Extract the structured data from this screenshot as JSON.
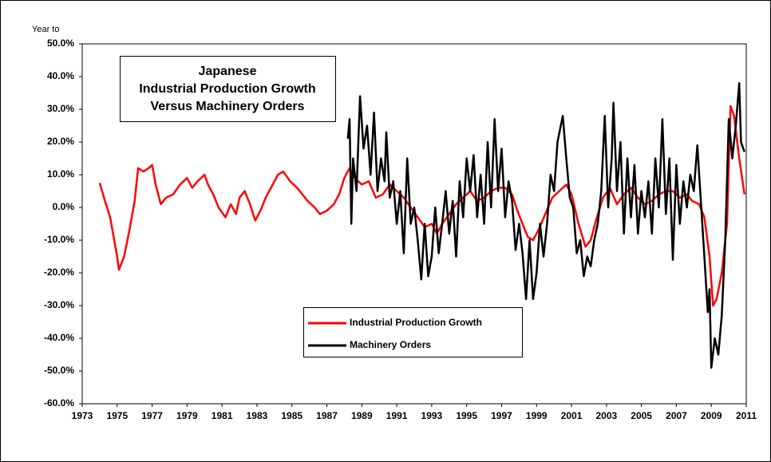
{
  "chart_data": {
    "type": "line",
    "title": [
      "Japanese",
      "Industrial Production Growth",
      "Versus Machinery Orders"
    ],
    "y_label": "Year to",
    "ylim": [
      -60,
      50
    ],
    "yticks": [
      {
        "value": -60,
        "label": "-60.0%"
      },
      {
        "value": -50,
        "label": "-50.0%"
      },
      {
        "value": -40,
        "label": "-40.0%"
      },
      {
        "value": -30,
        "label": "-30.0%"
      },
      {
        "value": -20,
        "label": "-20.0%"
      },
      {
        "value": -10,
        "label": "-10.0%"
      },
      {
        "value": 0,
        "label": "0.0%"
      },
      {
        "value": 10,
        "label": "10.0%"
      },
      {
        "value": 20,
        "label": "20.0%"
      },
      {
        "value": 30,
        "label": "30.0%"
      },
      {
        "value": 40,
        "label": "40.0%"
      },
      {
        "value": 50,
        "label": "50.0%"
      }
    ],
    "xlim": [
      1973,
      2011
    ],
    "xticks": [
      1973,
      1975,
      1977,
      1979,
      1981,
      1983,
      1985,
      1987,
      1989,
      1991,
      1993,
      1995,
      1997,
      1999,
      2001,
      2003,
      2005,
      2007,
      2009,
      2011
    ],
    "series": [
      {
        "name": "Industrial Production Growth",
        "color": "#ff0000",
        "x": [
          1974.0,
          1974.3,
          1974.6,
          1975.0,
          1975.1,
          1975.4,
          1975.7,
          1976.0,
          1976.2,
          1976.5,
          1976.8,
          1977.0,
          1977.2,
          1977.5,
          1977.8,
          1978.2,
          1978.6,
          1979.0,
          1979.3,
          1979.6,
          1980.0,
          1980.2,
          1980.5,
          1980.8,
          1981.2,
          1981.5,
          1981.8,
          1982.0,
          1982.3,
          1982.6,
          1982.9,
          1983.2,
          1983.5,
          1983.8,
          1984.2,
          1984.5,
          1984.9,
          1985.3,
          1985.6,
          1985.9,
          1986.3,
          1986.6,
          1987.0,
          1987.4,
          1987.7,
          1988.0,
          1988.3,
          1988.6,
          1989.0,
          1989.4,
          1989.8,
          1990.2,
          1990.6,
          1991.0,
          1991.4,
          1991.8,
          1992.2,
          1992.6,
          1993.0,
          1993.3,
          1993.6,
          1994.0,
          1994.4,
          1994.8,
          1995.2,
          1995.6,
          1996.0,
          1996.4,
          1996.8,
          1997.2,
          1997.6,
          1997.9,
          1998.2,
          1998.5,
          1998.8,
          1999.1,
          1999.5,
          1999.9,
          2000.3,
          2000.7,
          2001.0,
          2001.4,
          2001.8,
          2002.1,
          2002.4,
          2002.8,
          2003.2,
          2003.6,
          2004.0,
          2004.4,
          2004.8,
          2005.2,
          2005.6,
          2006.0,
          2006.4,
          2006.8,
          2007.2,
          2007.6,
          2007.9,
          2008.3,
          2008.6,
          2008.9,
          2009.1,
          2009.3,
          2009.6,
          2009.9,
          2010.1,
          2010.3,
          2010.6,
          2010.9
        ],
        "values": [
          7.5,
          2,
          -3,
          -15,
          -19,
          -15,
          -7,
          2,
          12,
          11,
          12,
          13,
          7,
          1,
          3,
          4,
          7,
          9,
          6,
          8,
          10,
          7,
          4,
          0,
          -3,
          1,
          -2,
          3,
          5,
          1,
          -4,
          -1,
          3,
          6,
          10,
          11,
          8,
          6,
          4,
          2,
          0,
          -2,
          -1,
          1,
          4,
          9,
          12,
          9,
          7,
          8,
          3,
          4,
          7,
          5,
          3,
          0,
          -3,
          -6,
          -5,
          -8,
          -5,
          -2,
          1,
          3,
          5,
          2,
          3,
          5,
          6,
          6,
          4,
          -1,
          -5,
          -9,
          -10,
          -7,
          -2,
          3,
          5,
          7,
          4,
          -5,
          -12,
          -10,
          -4,
          3,
          6,
          1,
          4,
          6,
          3,
          1,
          2,
          4,
          5,
          5,
          3,
          4,
          2,
          1,
          -3,
          -15,
          -30,
          -28,
          -20,
          -5,
          31,
          28,
          15,
          4
        ]
      },
      {
        "name": "Machinery Orders",
        "color": "#000000",
        "x": [
          1988.2,
          1988.3,
          1988.4,
          1988.5,
          1988.7,
          1988.9,
          1989.1,
          1989.3,
          1989.5,
          1989.7,
          1989.9,
          1990.1,
          1990.3,
          1990.4,
          1990.6,
          1990.8,
          1991.0,
          1991.2,
          1991.4,
          1991.6,
          1991.8,
          1992.0,
          1992.2,
          1992.4,
          1992.6,
          1992.8,
          1993.0,
          1993.2,
          1993.4,
          1993.6,
          1993.8,
          1994.0,
          1994.2,
          1994.4,
          1994.6,
          1994.8,
          1995.0,
          1995.2,
          1995.4,
          1995.6,
          1995.8,
          1996.0,
          1996.2,
          1996.4,
          1996.6,
          1996.8,
          1997.0,
          1997.2,
          1997.4,
          1997.6,
          1997.8,
          1998.0,
          1998.2,
          1998.4,
          1998.6,
          1998.8,
          1999.0,
          1999.2,
          1999.4,
          1999.6,
          1999.8,
          2000.0,
          2000.2,
          2000.5,
          2000.7,
          2000.9,
          2001.1,
          2001.3,
          2001.5,
          2001.7,
          2001.9,
          2002.1,
          2002.3,
          2002.5,
          2002.7,
          2002.9,
          2003.1,
          2003.3,
          2003.4,
          2003.6,
          2003.8,
          2004.0,
          2004.2,
          2004.4,
          2004.6,
          2004.8,
          2005.0,
          2005.2,
          2005.4,
          2005.6,
          2005.8,
          2006.0,
          2006.2,
          2006.4,
          2006.6,
          2006.8,
          2007.0,
          2007.2,
          2007.4,
          2007.6,
          2007.8,
          2008.0,
          2008.2,
          2008.4,
          2008.6,
          2008.8,
          2008.9,
          2009.0,
          2009.2,
          2009.4,
          2009.6,
          2009.8,
          2010.0,
          2010.2,
          2010.4,
          2010.6,
          2010.7,
          2010.9
        ],
        "values": [
          21,
          27,
          -5,
          15,
          5,
          34,
          18,
          25,
          10,
          29,
          5,
          15,
          8,
          23,
          3,
          8,
          -5,
          5,
          -14,
          15,
          -5,
          0,
          -10,
          -22,
          -5,
          -21,
          -15,
          0,
          -14,
          -5,
          5,
          -8,
          2,
          -15,
          8,
          -3,
          15,
          5,
          16,
          -3,
          10,
          -5,
          20,
          0,
          27,
          5,
          18,
          -3,
          8,
          2,
          -13,
          -5,
          -14,
          -28,
          -10,
          -28,
          -20,
          -5,
          -15,
          -5,
          10,
          5,
          20,
          28,
          15,
          3,
          0,
          -14,
          -10,
          -21,
          -15,
          -18,
          -10,
          -5,
          5,
          28,
          0,
          15,
          32,
          5,
          20,
          -8,
          15,
          -3,
          13,
          -8,
          5,
          -3,
          8,
          -8,
          15,
          0,
          27,
          -2,
          15,
          -16,
          13,
          -5,
          8,
          0,
          10,
          5,
          19,
          2,
          -15,
          -32,
          -25,
          -49,
          -40,
          -45,
          -33,
          -10,
          27,
          15,
          25,
          38,
          20,
          17
        ]
      }
    ]
  }
}
